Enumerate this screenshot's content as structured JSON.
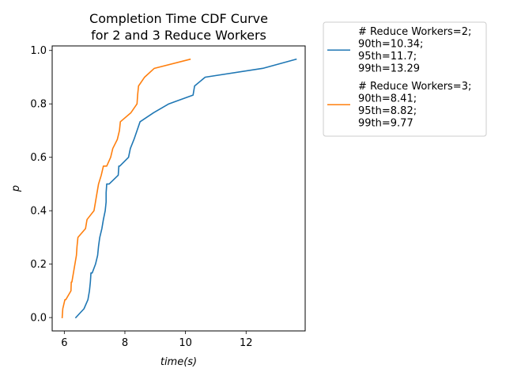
{
  "chart_data": {
    "type": "line",
    "title_lines": [
      "Completion Time CDF Curve",
      "for 2 and 3 Reduce Workers"
    ],
    "xlabel": "time(s)",
    "ylabel": "p",
    "xlim": [
      5.6,
      13.95
    ],
    "ylim": [
      -0.05,
      1.017
    ],
    "xticks": [
      6,
      8,
      10,
      12
    ],
    "yticks": [
      0.0,
      0.2,
      0.4,
      0.6,
      0.8,
      1.0
    ],
    "xtick_labels": [
      "6",
      "8",
      "10",
      "12"
    ],
    "ytick_labels": [
      "0.0",
      "0.2",
      "0.4",
      "0.6",
      "0.8",
      "1.0"
    ],
    "grid": false,
    "legend_position": "outside-right",
    "series": [
      {
        "name": "# Reduce Workers=2;",
        "legend_lines": [
          "# Reduce Workers=2;",
          "90th=10.34;",
          "95th=11.7;",
          "99th=13.29"
        ],
        "color": "#1f77b4",
        "x": [
          6.38,
          6.65,
          6.78,
          6.83,
          6.86,
          6.88,
          6.92,
          7.03,
          7.1,
          7.13,
          7.17,
          7.24,
          7.29,
          7.35,
          7.38,
          7.38,
          7.4,
          7.48,
          7.78,
          7.8,
          7.83,
          8.12,
          8.18,
          8.3,
          8.4,
          8.5,
          8.95,
          9.45,
          10.25,
          10.3,
          10.65,
          12.55,
          13.65
        ],
        "y": [
          0.0,
          0.033,
          0.067,
          0.1,
          0.133,
          0.167,
          0.167,
          0.2,
          0.233,
          0.267,
          0.3,
          0.333,
          0.367,
          0.4,
          0.433,
          0.467,
          0.5,
          0.5,
          0.533,
          0.567,
          0.567,
          0.6,
          0.633,
          0.667,
          0.7,
          0.733,
          0.767,
          0.8,
          0.833,
          0.867,
          0.9,
          0.933,
          0.967
        ]
      },
      {
        "name": "# Reduce Workers=3;",
        "legend_lines": [
          "# Reduce Workers=3;",
          "90th=8.41;",
          "95th=8.82;",
          "99th=9.77"
        ],
        "color": "#ff7f0e",
        "x": [
          5.93,
          5.95,
          6.02,
          6.05,
          6.22,
          6.23,
          6.25,
          6.4,
          6.42,
          6.45,
          6.7,
          6.75,
          6.98,
          7.08,
          7.13,
          7.22,
          7.29,
          7.4,
          7.53,
          7.6,
          7.75,
          7.82,
          7.85,
          8.2,
          8.4,
          8.42,
          8.45,
          8.65,
          8.97,
          10.15
        ],
        "y": [
          0.0,
          0.033,
          0.067,
          0.067,
          0.1,
          0.133,
          0.133,
          0.233,
          0.267,
          0.3,
          0.333,
          0.367,
          0.4,
          0.467,
          0.5,
          0.533,
          0.567,
          0.567,
          0.6,
          0.633,
          0.667,
          0.7,
          0.733,
          0.767,
          0.8,
          0.833,
          0.867,
          0.9,
          0.933,
          0.967
        ]
      }
    ]
  }
}
